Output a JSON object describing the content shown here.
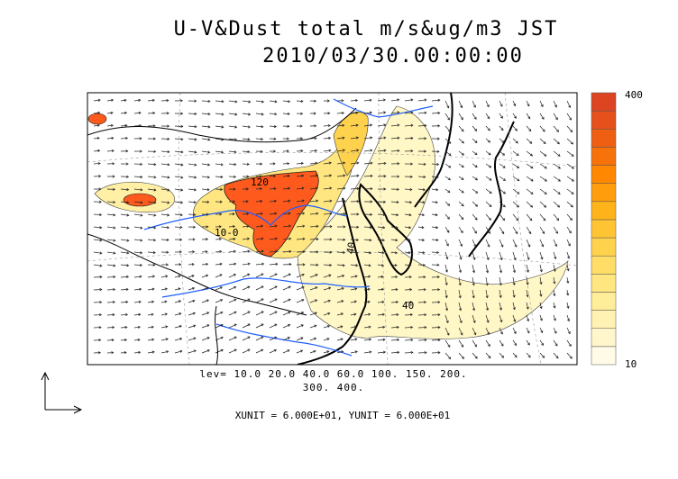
{
  "title": {
    "line1": "U-V&Dust total m/s&ug/m3 JST",
    "line2": "2010/03/30.00:00:00"
  },
  "colorbar": {
    "max_label": "400",
    "min_label": "10",
    "colors": [
      "#fffbe6",
      "#fff6cc",
      "#fff2b3",
      "#ffee99",
      "#ffe680",
      "#ffdd66",
      "#ffd24d",
      "#ffc433",
      "#ffb31a",
      "#ff9d0d",
      "#ff8800",
      "#f7720a",
      "#ee5f14",
      "#e5501d",
      "#dd4422"
    ]
  },
  "contour_labels": [
    "120",
    "10-0",
    "40",
    "40"
  ],
  "legend": {
    "levels_line1": "lev= 10.0 20.0 40.0 60.0 100. 150. 200.",
    "levels_line2": "300. 400.",
    "units": "XUNIT = 6.000E+01, YUNIT = 6.000E+01"
  },
  "colors": {
    "land_line": "#000000",
    "river": "#1f5fff",
    "max_dust": "#ff5a1e"
  }
}
